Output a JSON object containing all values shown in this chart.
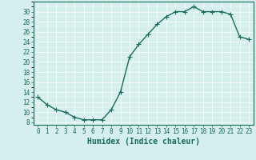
{
  "x": [
    0,
    1,
    2,
    3,
    4,
    5,
    6,
    7,
    8,
    9,
    10,
    11,
    12,
    13,
    14,
    15,
    16,
    17,
    18,
    19,
    20,
    21,
    22,
    23
  ],
  "y": [
    13,
    11.5,
    10.5,
    10,
    9,
    8.5,
    8.5,
    8.5,
    10.5,
    14,
    21,
    23.5,
    25.5,
    27.5,
    29,
    30,
    30,
    31,
    30,
    30,
    30,
    29.5,
    25,
    24.5
  ],
  "line_color": "#1a6b5a",
  "marker": "+",
  "marker_size": 4,
  "bg_color": "#d4efec",
  "grid_color": "#ffffff",
  "xlabel": "Humidex (Indice chaleur)",
  "xlim": [
    -0.5,
    23.5
  ],
  "ylim": [
    7.5,
    32
  ],
  "yticks": [
    8,
    10,
    12,
    14,
    16,
    18,
    20,
    22,
    24,
    26,
    28,
    30
  ],
  "xticks": [
    0,
    1,
    2,
    3,
    4,
    5,
    6,
    7,
    8,
    9,
    10,
    11,
    12,
    13,
    14,
    15,
    16,
    17,
    18,
    19,
    20,
    21,
    22,
    23
  ],
  "xlabel_fontsize": 7,
  "tick_fontsize": 5.5,
  "tick_color": "#1a6b5a",
  "axis_color": "#1a6b5a",
  "linewidth": 1.0,
  "markeredgewidth": 0.8
}
